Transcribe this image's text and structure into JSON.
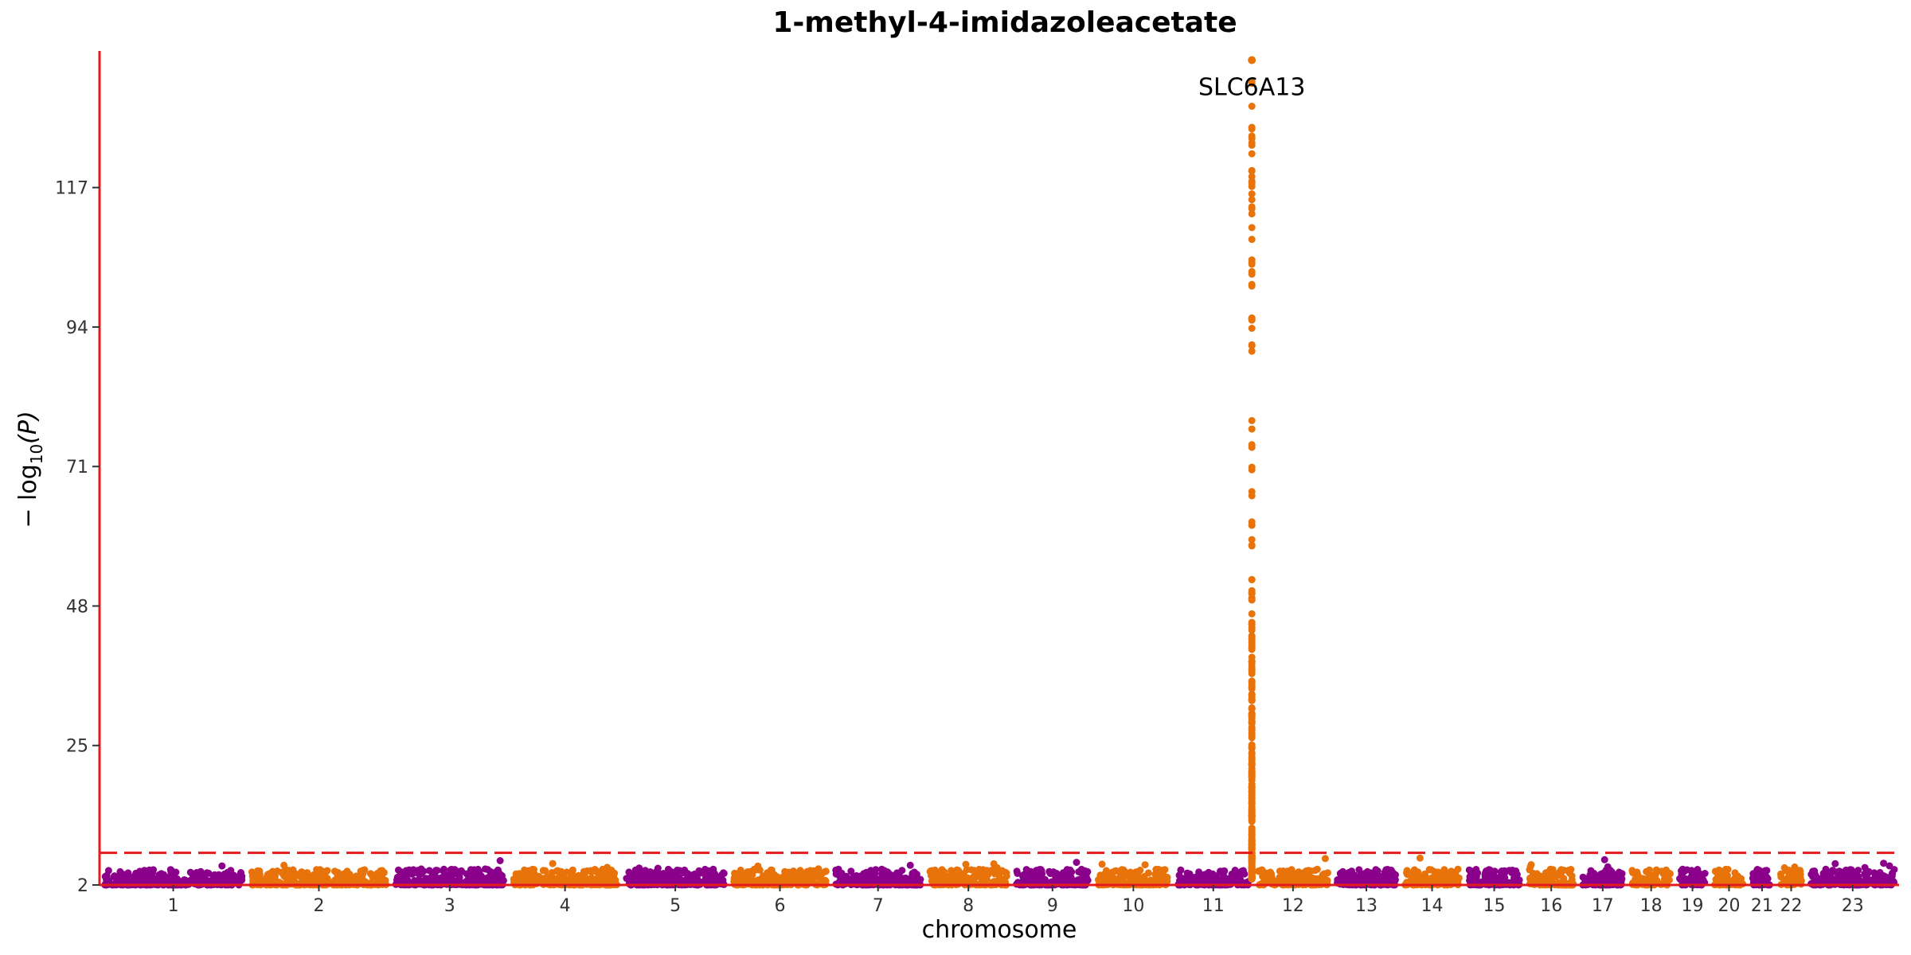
{
  "chart_data": {
    "type": "scatter",
    "title": "1-methyl-4-imidazoleacetate",
    "xlabel": "chromosome",
    "ylabel": "−log10(P)",
    "ylabel_prefix": "− log",
    "ylabel_sub": "10",
    "ylabel_suffix": "(P)",
    "y_ticks": [
      2,
      25,
      48,
      71,
      94,
      117
    ],
    "ylim": [
      2,
      139
    ],
    "significance_line": 7.3,
    "chromosomes": [
      {
        "label": "1",
        "length": 248
      },
      {
        "label": "2",
        "length": 242
      },
      {
        "label": "3",
        "length": 198
      },
      {
        "label": "4",
        "length": 190
      },
      {
        "label": "5",
        "length": 181
      },
      {
        "label": "6",
        "length": 171
      },
      {
        "label": "7",
        "length": 159
      },
      {
        "label": "8",
        "length": 145
      },
      {
        "label": "9",
        "length": 138
      },
      {
        "label": "10",
        "length": 134
      },
      {
        "label": "11",
        "length": 135
      },
      {
        "label": "12",
        "length": 133
      },
      {
        "label": "13",
        "length": 114
      },
      {
        "label": "14",
        "length": 107
      },
      {
        "label": "15",
        "length": 102
      },
      {
        "label": "16",
        "length": 90
      },
      {
        "label": "17",
        "length": 83
      },
      {
        "label": "18",
        "length": 80
      },
      {
        "label": "19",
        "length": 59
      },
      {
        "label": "20",
        "length": 64
      },
      {
        "label": "21",
        "length": 47
      },
      {
        "label": "22",
        "length": 51
      },
      {
        "label": "23",
        "length": 156
      }
    ],
    "peak": {
      "chromosome": "11",
      "position_fraction": 0.98,
      "top_value": 138,
      "gene_label": "SLC6A13"
    },
    "colors": {
      "odd": "#8B008B",
      "even": "#E8730A",
      "significance": "#E41A1C",
      "axis": "#E41A1C"
    }
  }
}
